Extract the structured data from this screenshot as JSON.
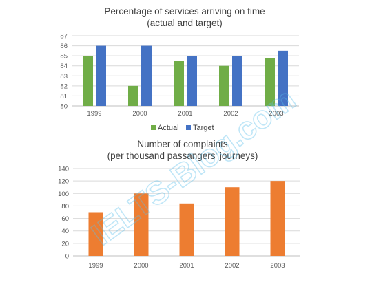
{
  "colors": {
    "actual": "#70AD47",
    "target": "#4472C4",
    "complaints": "#ED7D31",
    "watermark": "#5BC0EB"
  },
  "watermark_text": "IELTS-Blog.com",
  "chart_data": [
    {
      "type": "bar",
      "title_line1": "Percentage of services arriving on time",
      "title_line2": "(actual and target)",
      "categories": [
        "1999",
        "2000",
        "2001",
        "2002",
        "2003"
      ],
      "series": [
        {
          "name": "Actual",
          "values": [
            85,
            82,
            84.5,
            84,
            84.8
          ]
        },
        {
          "name": "Target",
          "values": [
            86,
            86,
            85,
            85,
            85.5
          ]
        }
      ],
      "ylim": [
        80,
        87
      ],
      "yticks": [
        "80",
        "81",
        "82",
        "83",
        "84",
        "85",
        "86",
        "87"
      ],
      "grid": true,
      "legend": "bottom"
    },
    {
      "type": "bar",
      "title_line1": "Number of complaints",
      "title_line2": "(per thousand passangers' journeys)",
      "categories": [
        "1999",
        "2000",
        "2001",
        "2002",
        "2003"
      ],
      "values": [
        70,
        100,
        84,
        110,
        120
      ],
      "ylim": [
        0,
        140
      ],
      "yticks": [
        "0",
        "20",
        "40",
        "60",
        "80",
        "100",
        "120",
        "140"
      ],
      "grid": true
    }
  ]
}
